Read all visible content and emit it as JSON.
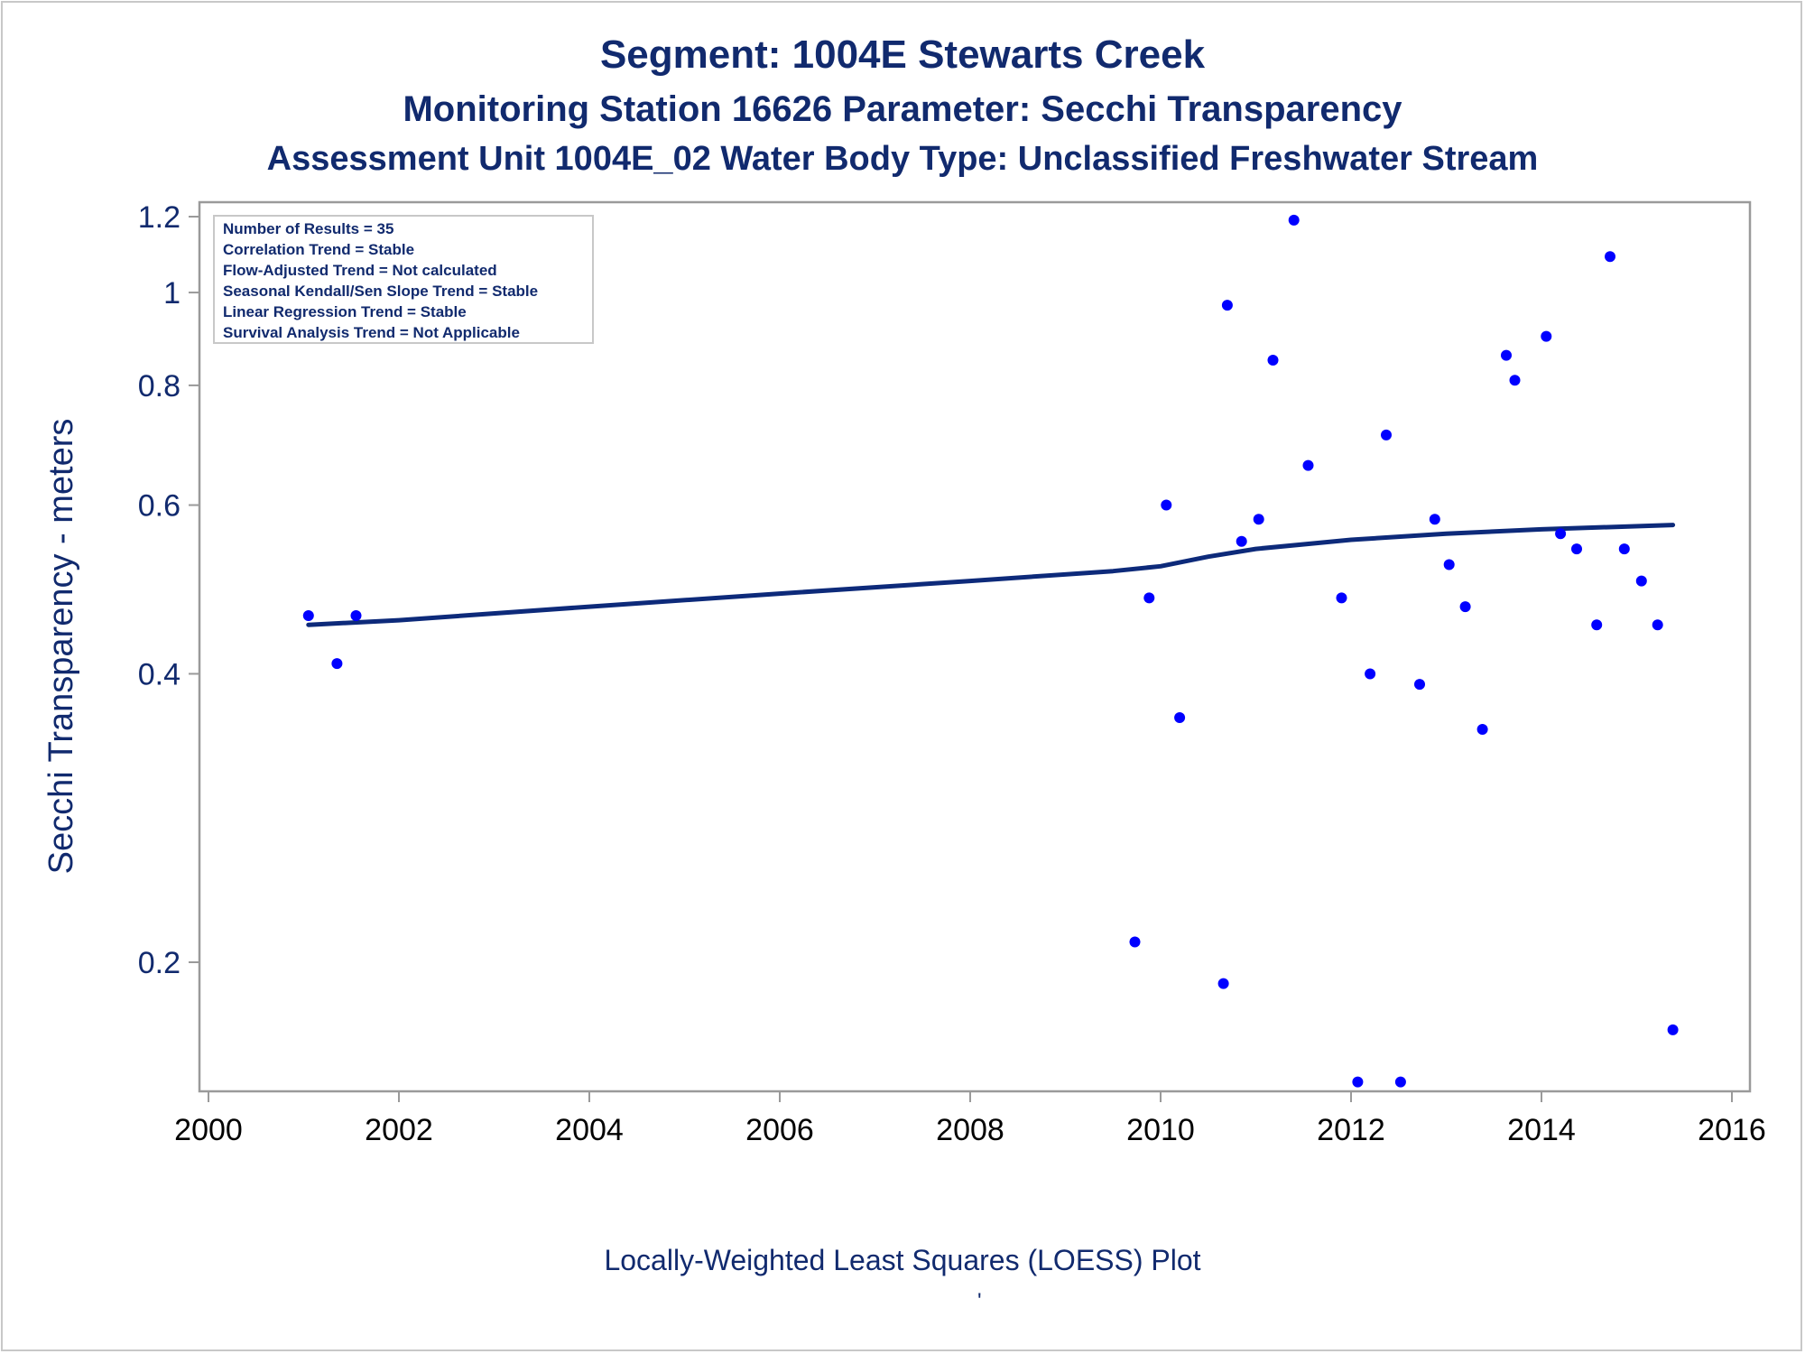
{
  "chart_data": {
    "type": "scatter",
    "title": "Segment: 1004E  Stewarts Creek",
    "subtitle": "Monitoring Station 16626 Parameter: Secchi Transparency",
    "subtitle2": "Assessment Unit 1004E_02   Water Body Type: Unclassified Freshwater Stream",
    "xlabel": "",
    "ylabel": "Secchi Transparency - meters",
    "footnote": "Locally-Weighted Least Squares (LOESS) Plot",
    "footnote_mark": "'",
    "y_scale": "log",
    "xlim": [
      2000,
      2016
    ],
    "ylim": [
      0.14,
      1.25
    ],
    "x_ticks": [
      2000,
      2002,
      2004,
      2006,
      2008,
      2010,
      2012,
      2014,
      2016
    ],
    "y_ticks": [
      0.2,
      0.4,
      0.6,
      0.8,
      1,
      1.2
    ],
    "y_tick_labels": [
      "0.2",
      "0.4",
      "0.6",
      "0.8",
      "1",
      "1.2"
    ],
    "grid": false,
    "inset_legend_position": "top-left",
    "stats_box": [
      "Number of Results = 35",
      "Correlation Trend = Stable",
      "Flow-Adjusted Trend = Not calculated",
      "Seasonal Kendall/Sen Slope Trend = Stable",
      "Linear Regression Trend = Stable",
      "Survival Analysis Trend = Not Applicable"
    ],
    "colors": {
      "points": "#0000ff",
      "loess": "#0d2a7a",
      "text": "#112a6e",
      "axis": "#9a9a9a"
    },
    "series": [
      {
        "type": "scatter",
        "points": [
          [
            2001.05,
            0.46
          ],
          [
            2001.35,
            0.41
          ],
          [
            2001.55,
            0.46
          ],
          [
            2009.73,
            0.21
          ],
          [
            2009.88,
            0.48
          ],
          [
            2010.06,
            0.6
          ],
          [
            2010.2,
            0.36
          ],
          [
            2010.66,
            0.19
          ],
          [
            2010.7,
            0.97
          ],
          [
            2010.85,
            0.55
          ],
          [
            2011.03,
            0.58
          ],
          [
            2011.18,
            0.85
          ],
          [
            2011.4,
            1.19
          ],
          [
            2011.55,
            0.66
          ],
          [
            2011.9,
            0.48
          ],
          [
            2012.07,
            0.15
          ],
          [
            2012.2,
            0.4
          ],
          [
            2012.37,
            0.71
          ],
          [
            2012.52,
            0.15
          ],
          [
            2012.72,
            0.39
          ],
          [
            2012.88,
            0.58
          ],
          [
            2013.03,
            0.52
          ],
          [
            2013.2,
            0.47
          ],
          [
            2013.38,
            0.35
          ],
          [
            2013.63,
            0.86
          ],
          [
            2013.72,
            0.81
          ],
          [
            2014.05,
            0.9
          ],
          [
            2014.2,
            0.56
          ],
          [
            2014.37,
            0.54
          ],
          [
            2014.58,
            0.45
          ],
          [
            2014.72,
            1.09
          ],
          [
            2014.87,
            0.54
          ],
          [
            2015.05,
            0.5
          ],
          [
            2015.22,
            0.45
          ],
          [
            2015.38,
            0.17
          ]
        ]
      },
      {
        "type": "line",
        "points": [
          [
            2001.05,
            0.45
          ],
          [
            2002,
            0.455
          ],
          [
            2004,
            0.47
          ],
          [
            2006,
            0.485
          ],
          [
            2008,
            0.5
          ],
          [
            2009.5,
            0.512
          ],
          [
            2010,
            0.518
          ],
          [
            2010.5,
            0.53
          ],
          [
            2011,
            0.54
          ],
          [
            2012,
            0.552
          ],
          [
            2013,
            0.56
          ],
          [
            2014,
            0.566
          ],
          [
            2015.38,
            0.572
          ]
        ]
      }
    ]
  }
}
